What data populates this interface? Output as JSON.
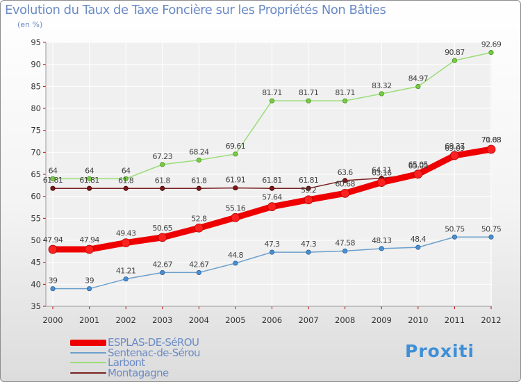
{
  "header": {
    "title": "Evolution du Taux de Taxe Foncière sur les Propriétés Non Bâties",
    "subtitle": "(en %)"
  },
  "brand": "Proxiti",
  "colors": {
    "plot_background": "#f0f0f0",
    "grid": "#ffffff",
    "axis_text": "#333333",
    "tick_marks": "#cc0000",
    "title": "#6b8bc6"
  },
  "chart_data": {
    "type": "line",
    "x": [
      "2000",
      "2001",
      "2002",
      "2003",
      "2004",
      "2005",
      "2006",
      "2007",
      "2008",
      "2009",
      "2010",
      "2011",
      "2012"
    ],
    "ylim": [
      35,
      95
    ],
    "yticks": [
      35,
      40,
      45,
      50,
      55,
      60,
      65,
      70,
      75,
      80,
      85,
      90,
      95
    ],
    "grid": true,
    "legend_position": "bottom-left",
    "series": [
      {
        "name": "ESPLAS-DE-SéROU",
        "color": "#ee0000",
        "marker_color": "#ff2020",
        "marker_stroke": "#aa0000",
        "line_width": 9,
        "marker_radius": 6,
        "values": [
          47.94,
          47.94,
          49.43,
          50.65,
          52.8,
          55.16,
          57.64,
          59.2,
          60.68,
          63.16,
          65.05,
          69.27,
          70.68
        ],
        "labels": [
          "47.94",
          "47.94",
          "49.43",
          "50.65",
          "52.8",
          "55.16",
          "57.64",
          "59.2",
          "60.68",
          "63.16",
          "65.05",
          "69.27",
          "70.68"
        ]
      },
      {
        "name": "Sentenac-de-Sérou",
        "color": "#6a9fcc",
        "marker_color": "#4a90d6",
        "marker_stroke": "#2a5f90",
        "line_width": 1.5,
        "marker_radius": 3.2,
        "values": [
          39,
          39,
          41.21,
          42.67,
          42.67,
          44.8,
          47.3,
          47.3,
          47.58,
          48.13,
          48.4,
          50.75,
          50.75
        ],
        "labels": [
          "39",
          "39",
          "41.21",
          "42.67",
          "42.67",
          "44.8",
          "47.3",
          "47.3",
          "47.58",
          "48.13",
          "48.4",
          "50.75",
          "50.75"
        ]
      },
      {
        "name": "Larbont",
        "color": "#99dd77",
        "marker_color": "#77cc44",
        "marker_stroke": "#4a8f22",
        "line_width": 1.5,
        "marker_radius": 3.2,
        "values": [
          64,
          64,
          64,
          67.23,
          68.24,
          69.61,
          81.71,
          81.71,
          81.71,
          83.32,
          84.97,
          90.87,
          92.69
        ],
        "labels": [
          "64",
          "64",
          "64",
          "67.23",
          "68.24",
          "69.61",
          "81.71",
          "81.71",
          "81.71",
          "83.32",
          "84.97",
          "90.87",
          "92.69"
        ]
      },
      {
        "name": "Montagagne",
        "color": "#7a2020",
        "marker_color": "#7a1a1a",
        "marker_stroke": "#440000",
        "line_width": 1.5,
        "marker_radius": 3.2,
        "values": [
          61.81,
          61.81,
          61.8,
          61.8,
          61.8,
          61.91,
          61.81,
          61.81,
          63.6,
          64.11,
          65.05,
          69.09,
          71.03
        ],
        "labels": [
          "61.81",
          "61.81",
          "61.8",
          "61.8",
          "61.8",
          "61.91",
          "61.81",
          "61.81",
          "63.6",
          "64.11",
          "65.05",
          "69.09",
          "71.03"
        ]
      }
    ]
  }
}
